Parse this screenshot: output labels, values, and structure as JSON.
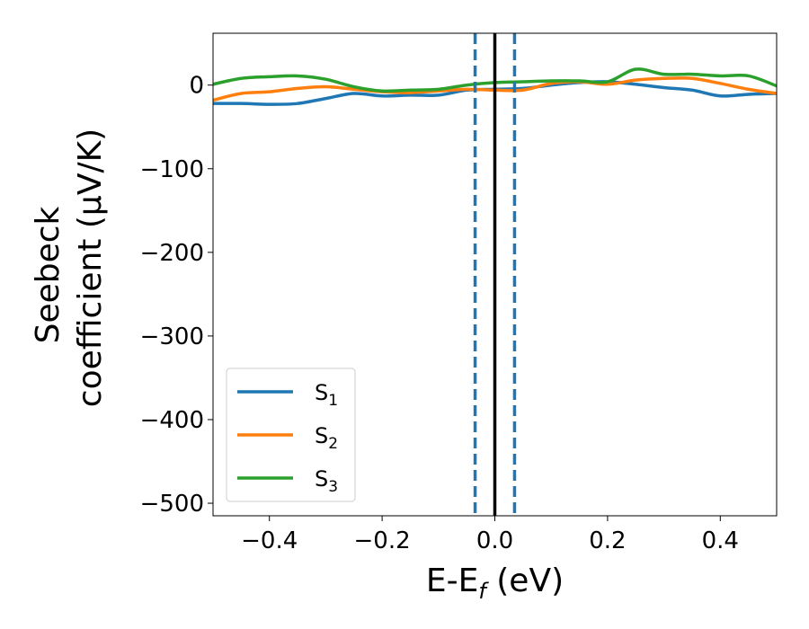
{
  "chart_data": {
    "type": "line",
    "xlabel": {
      "main": "E-E",
      "sub": "f",
      "rest": " (eV)"
    },
    "ylabel": {
      "line1": "Seebeck",
      "line2": "coefficient  (μV/K)"
    },
    "xlim": [
      -0.5,
      0.5
    ],
    "ylim": [
      -515,
      62
    ],
    "xticks": [
      -0.4,
      -0.2,
      0.0,
      0.2,
      0.4
    ],
    "xtick_labels": [
      "−0.4",
      "−0.2",
      "0.0",
      "0.2",
      "0.4"
    ],
    "yticks": [
      0,
      -100,
      -200,
      -300,
      -400,
      -500
    ],
    "ytick_labels": [
      "0",
      "−100",
      "−200",
      "−300",
      "−400",
      "−500"
    ],
    "grid": false,
    "legend_position": "lower-left",
    "vlines": [
      {
        "x": -0.035,
        "style": "dashed",
        "color": "#1f77b4"
      },
      {
        "x": 0.035,
        "style": "dashed",
        "color": "#1f77b4"
      },
      {
        "x": 0.0,
        "style": "solid",
        "color": "#000000"
      }
    ],
    "series": [
      {
        "name": "S",
        "sub": "1",
        "color": "#1f77b4",
        "x": [
          -0.5,
          -0.45,
          -0.4,
          -0.35,
          -0.3,
          -0.25,
          -0.2,
          -0.15,
          -0.1,
          -0.05,
          0.0,
          0.05,
          0.1,
          0.15,
          0.2,
          0.25,
          0.3,
          0.35,
          0.4,
          0.45,
          0.5
        ],
        "y": [
          -22,
          -22,
          -23,
          -22,
          -16,
          -10,
          -13,
          -12,
          -12,
          -6,
          -5,
          -4,
          0,
          3,
          4,
          1,
          -3,
          -6,
          -13,
          -11,
          -10
        ]
      },
      {
        "name": "S",
        "sub": "2",
        "color": "#ff7f0e",
        "x": [
          -0.5,
          -0.45,
          -0.4,
          -0.35,
          -0.3,
          -0.25,
          -0.2,
          -0.15,
          -0.1,
          -0.05,
          0.0,
          0.05,
          0.1,
          0.15,
          0.2,
          0.25,
          0.3,
          0.35,
          0.4,
          0.45,
          0.5
        ],
        "y": [
          -18,
          -10,
          -8,
          -4,
          -2,
          -5,
          -8,
          -9,
          -7,
          -5,
          -6,
          -6,
          2,
          4,
          1,
          6,
          8,
          8,
          2,
          -5,
          -10
        ]
      },
      {
        "name": "S",
        "sub": "3",
        "color": "#2ca02c",
        "x": [
          -0.5,
          -0.45,
          -0.4,
          -0.35,
          -0.3,
          -0.25,
          -0.2,
          -0.15,
          -0.1,
          -0.05,
          0.0,
          0.05,
          0.1,
          0.15,
          0.2,
          0.25,
          0.3,
          0.35,
          0.4,
          0.45,
          0.5
        ],
        "y": [
          1,
          8,
          10,
          11,
          7,
          -2,
          -7,
          -6,
          -5,
          0,
          3,
          4,
          5,
          5,
          4,
          19,
          13,
          13,
          11,
          11,
          -1
        ]
      }
    ]
  }
}
